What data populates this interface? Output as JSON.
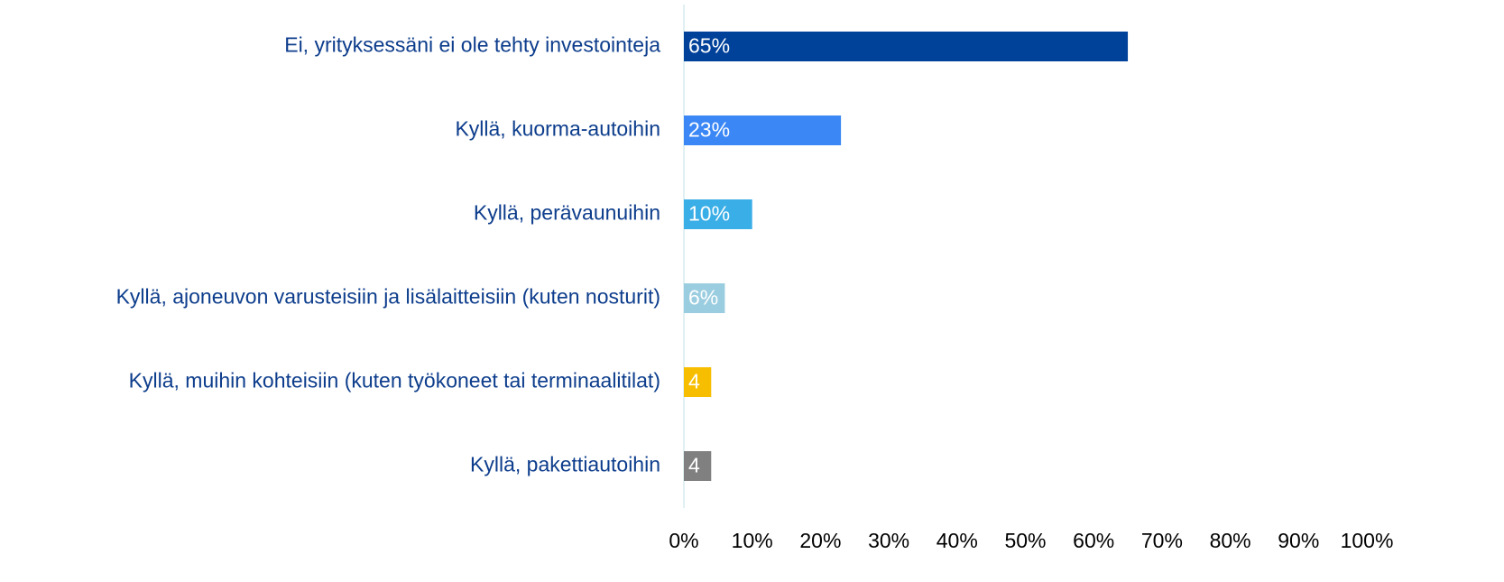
{
  "chart_data": {
    "type": "barh",
    "categories": [
      "Ei, yrityksessäni ei ole tehty investointeja",
      "Kyllä, kuorma-autoihin",
      "Kyllä, perävaunuihin",
      "Kyllä, ajoneuvon varusteisiin ja lisälaitteisiin (kuten nosturit)",
      "Kyllä, muihin kohteisiin (kuten työkoneet tai terminaalitilat)",
      "Kyllä, pakettiautoihin"
    ],
    "values": [
      65,
      23,
      10,
      6,
      4,
      4
    ],
    "value_labels": [
      "65%",
      "23%",
      "10%",
      "6%",
      "4",
      "4"
    ],
    "colors": [
      "#00419a",
      "#3a87f5",
      "#3aaee6",
      "#9bcde0",
      "#f7be00",
      "#808080"
    ],
    "xlim": [
      0,
      100
    ],
    "xticks": [
      {
        "value": 0,
        "label": "0%"
      },
      {
        "value": 10,
        "label": "10%"
      },
      {
        "value": 20,
        "label": "20%"
      },
      {
        "value": 30,
        "label": "30%"
      },
      {
        "value": 40,
        "label": "40%"
      },
      {
        "value": 50,
        "label": "50%"
      },
      {
        "value": 60,
        "label": "60%"
      },
      {
        "value": 70,
        "label": "70%"
      },
      {
        "value": 80,
        "label": "80%"
      },
      {
        "value": 90,
        "label": "90%"
      },
      {
        "value": 100,
        "label": "100%"
      }
    ]
  }
}
